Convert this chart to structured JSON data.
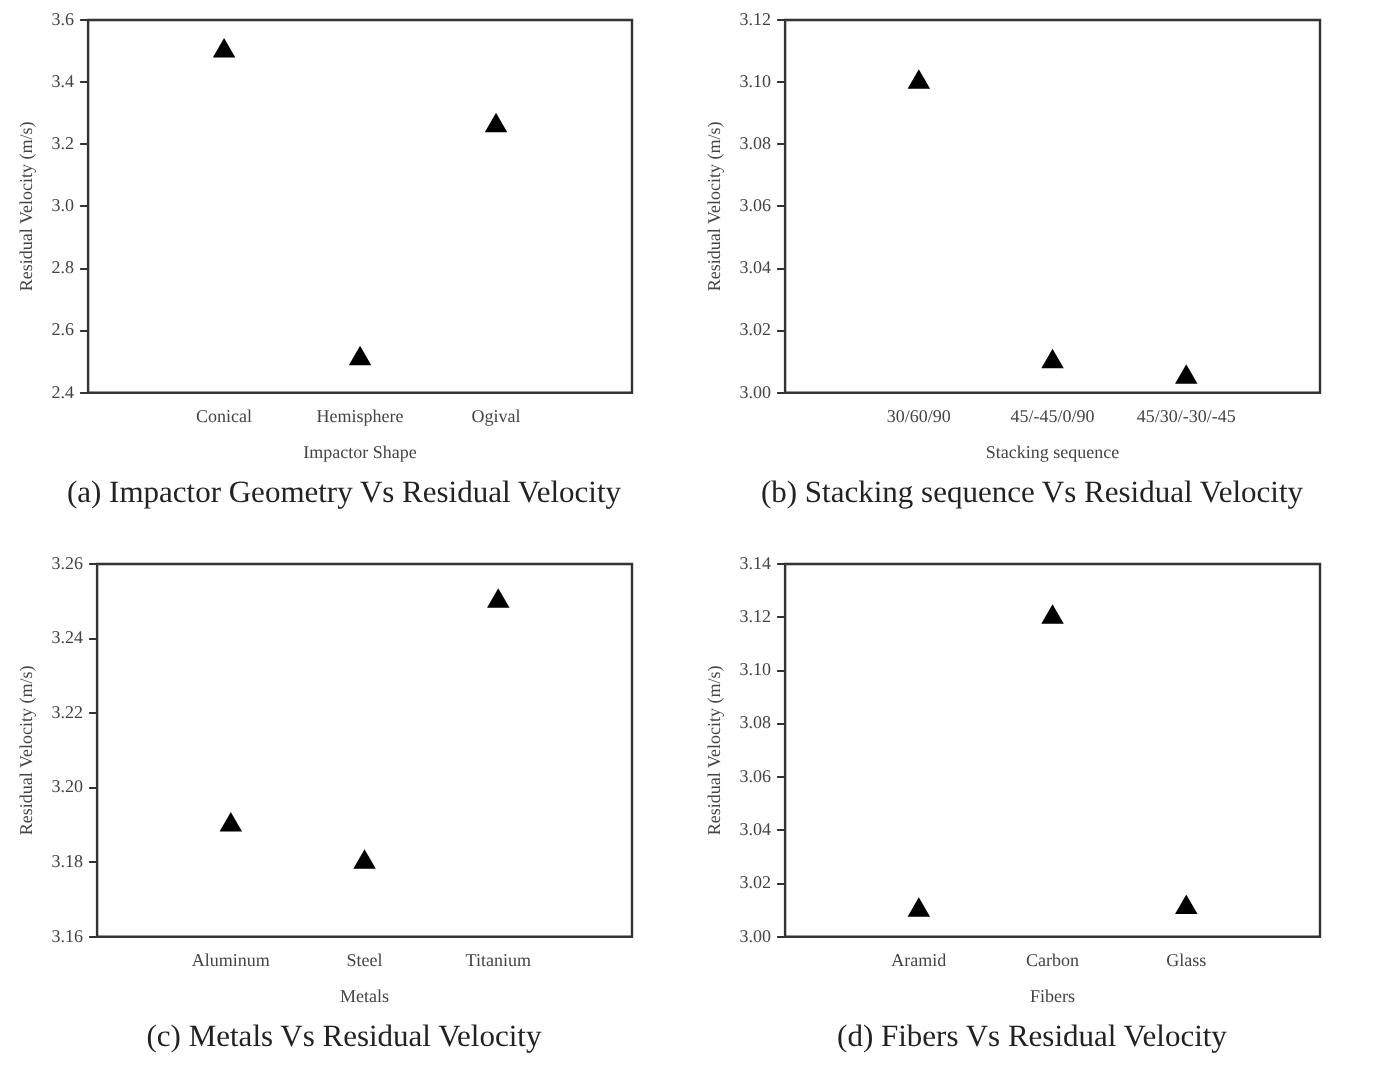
{
  "chart_data": [
    {
      "type": "scatter",
      "title": "(a) Impactor Geometry Vs Residual Velocity",
      "xlabel": "Impactor Shape",
      "ylabel": "Residual Velocity (m/s)",
      "categories": [
        "Conical",
        "Hemisphere",
        "Ogival"
      ],
      "series": [
        {
          "color": "#000000",
          "values": [
            3.5,
            2.51,
            3.26
          ]
        }
      ],
      "ylim": [
        2.4,
        3.6
      ],
      "yticks": [
        {
          "value": 2.4,
          "label": "2.4"
        },
        {
          "value": 2.6,
          "label": "2.6"
        },
        {
          "value": 2.8,
          "label": "2.8"
        },
        {
          "value": 3.0,
          "label": "3.0"
        },
        {
          "value": 3.2,
          "label": "3.2"
        },
        {
          "value": 3.4,
          "label": "3.4"
        },
        {
          "value": 3.6,
          "label": "3.6"
        }
      ],
      "marker": "triangle",
      "grid": false,
      "legend": false
    },
    {
      "type": "scatter",
      "title": "(b) Stacking sequence Vs Residual Velocity",
      "xlabel": "Stacking sequence",
      "ylabel": "Residual Velocity (m/s)",
      "categories": [
        "30/60/90",
        "45/-45/0/90",
        "45/30/-30/-45"
      ],
      "series": [
        {
          "color": "#000000",
          "values": [
            3.1,
            3.01,
            3.005
          ]
        }
      ],
      "ylim": [
        3.0,
        3.12
      ],
      "yticks": [
        {
          "value": 3.0,
          "label": "3.00"
        },
        {
          "value": 3.02,
          "label": "3.02"
        },
        {
          "value": 3.04,
          "label": "3.04"
        },
        {
          "value": 3.06,
          "label": "3.06"
        },
        {
          "value": 3.08,
          "label": "3.08"
        },
        {
          "value": 3.1,
          "label": "3.10"
        },
        {
          "value": 3.12,
          "label": "3.12"
        }
      ],
      "marker": "triangle",
      "grid": false,
      "legend": false
    },
    {
      "type": "scatter",
      "title": "(c) Metals Vs Residual Velocity",
      "xlabel": "Metals",
      "ylabel": "Residual Velocity (m/s)",
      "categories": [
        "Aluminum",
        "Steel",
        "Titanium"
      ],
      "series": [
        {
          "color": "#000000",
          "values": [
            3.19,
            3.18,
            3.25
          ]
        }
      ],
      "ylim": [
        3.16,
        3.26
      ],
      "yticks": [
        {
          "value": 3.16,
          "label": "3.16"
        },
        {
          "value": 3.18,
          "label": "3.18"
        },
        {
          "value": 3.2,
          "label": "3.20"
        },
        {
          "value": 3.22,
          "label": "3.22"
        },
        {
          "value": 3.24,
          "label": "3.24"
        },
        {
          "value": 3.26,
          "label": "3.26"
        }
      ],
      "marker": "triangle",
      "grid": false,
      "legend": false
    },
    {
      "type": "scatter",
      "title": "(d) Fibers Vs Residual Velocity",
      "xlabel": "Fibers",
      "ylabel": "Residual Velocity (m/s)",
      "categories": [
        "Aramid",
        "Carbon",
        "Glass"
      ],
      "series": [
        {
          "color": "#000000",
          "values": [
            3.01,
            3.12,
            3.011
          ]
        }
      ],
      "ylim": [
        3.0,
        3.14
      ],
      "yticks": [
        {
          "value": 3.0,
          "label": "3.00"
        },
        {
          "value": 3.02,
          "label": "3.02"
        },
        {
          "value": 3.04,
          "label": "3.04"
        },
        {
          "value": 3.06,
          "label": "3.06"
        },
        {
          "value": 3.08,
          "label": "3.08"
        },
        {
          "value": 3.1,
          "label": "3.10"
        },
        {
          "value": 3.12,
          "label": "3.12"
        },
        {
          "value": 3.14,
          "label": "3.14"
        }
      ],
      "marker": "triangle",
      "grid": false,
      "legend": false
    }
  ]
}
